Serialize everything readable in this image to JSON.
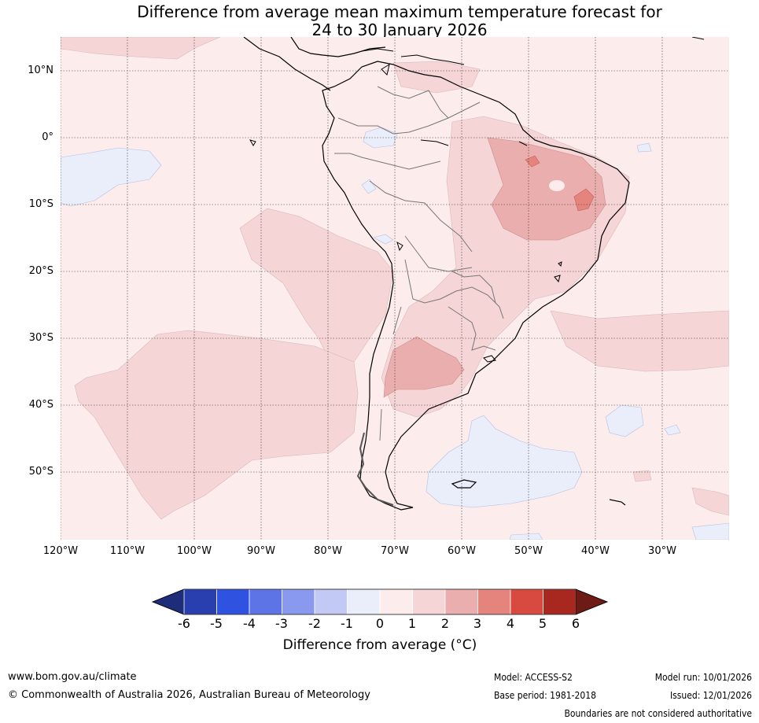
{
  "title": {
    "line1": "Difference from average mean maximum temperature forecast for",
    "line2": "24 to 30 January 2026"
  },
  "map": {
    "lat_labels": [
      "10°N",
      "0°",
      "10°S",
      "20°S",
      "30°S",
      "40°S",
      "50°S"
    ],
    "lon_labels": [
      "120°W",
      "110°W",
      "100°W",
      "90°W",
      "80°W",
      "70°W",
      "60°W",
      "50°W",
      "40°W",
      "30°W"
    ]
  },
  "colorbar": {
    "ticks": [
      "-6",
      "-5",
      "-4",
      "-3",
      "-2",
      "-1",
      "0",
      "1",
      "2",
      "3",
      "4",
      "5",
      "6"
    ],
    "colors": [
      "#2a3faf",
      "#2f52e0",
      "#5c74e6",
      "#8899ee",
      "#c2c9f5",
      "#eaeefb",
      "#fcecec",
      "#f5d5d5",
      "#ebaeae",
      "#e5837d",
      "#d84a3f",
      "#a8271f"
    ],
    "under_color": "#1e2d7a",
    "over_color": "#6e1a15",
    "label": "Difference from average (°C)"
  },
  "footer": {
    "url": "www.bom.gov.au/climate",
    "copyright": "© Commonwealth of Australia 2026, Australian Bureau of Meteorology",
    "model": "Model: ACCESS-S2",
    "base_period": "Base period: 1981-2018",
    "model_run": "Model run: 10/01/2026",
    "issued": "Issued: 12/01/2026",
    "disclaimer": "Boundaries are not considered authoritative"
  }
}
